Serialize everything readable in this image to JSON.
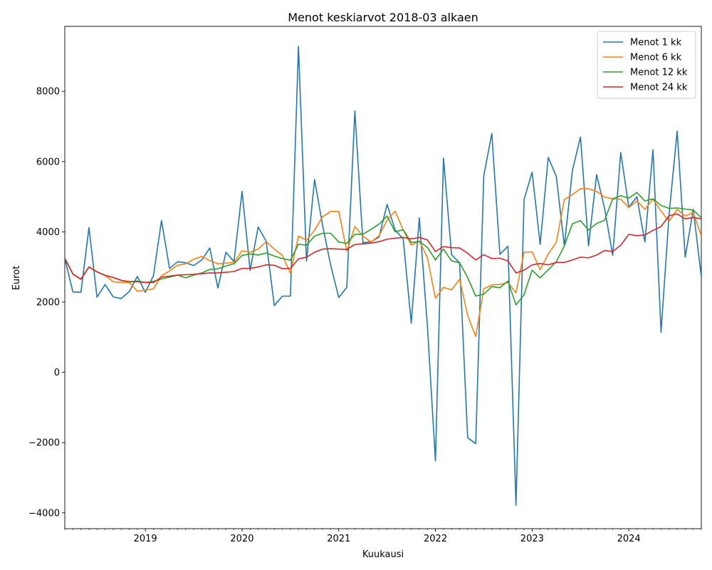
{
  "chart_data": {
    "type": "line",
    "title": "Menot keskiarvot 2018-03 alkaen",
    "xlabel": "Kuukausi",
    "ylabel": "Eurot",
    "x_start": "2018-03",
    "x_end": "2024-10",
    "xlim": [
      "2018-03",
      "2024-10"
    ],
    "ylim": [
      -4450,
      9850
    ],
    "yticks": [
      -4000,
      -2000,
      0,
      2000,
      4000,
      6000,
      8000
    ],
    "xticks": [
      {
        "label": "2019",
        "date": "2019-01"
      },
      {
        "label": "2020",
        "date": "2020-01"
      },
      {
        "label": "2021",
        "date": "2021-01"
      },
      {
        "label": "2022",
        "date": "2022-01"
      },
      {
        "label": "2023",
        "date": "2023-01"
      },
      {
        "label": "2024",
        "date": "2024-01"
      }
    ],
    "grid": false,
    "legend_position": "top-right",
    "series": [
      {
        "name": "Menot 1 kk",
        "color": "#1f77b4",
        "values": [
          3250,
          2290,
          2280,
          4120,
          2140,
          2500,
          2150,
          2100,
          2300,
          2730,
          2280,
          2750,
          4320,
          2960,
          3150,
          3120,
          3040,
          3200,
          3540,
          2400,
          3420,
          3150,
          5150,
          2900,
          4140,
          3730,
          1900,
          2170,
          2170,
          9280,
          3170,
          5490,
          4180,
          3050,
          2130,
          2420,
          7440,
          3690,
          3720,
          3850,
          4780,
          4050,
          3800,
          1400,
          4400,
          1330,
          -2520,
          6100,
          3350,
          3120,
          -1860,
          -2030,
          5600,
          6800,
          3360,
          3590,
          -3780,
          4920,
          5700,
          3640,
          6120,
          5580,
          3600,
          5750,
          6700,
          3600,
          5630,
          4660,
          3330,
          6260,
          4700,
          5000,
          3710,
          6340,
          1140,
          4500,
          6870,
          3280,
          4640,
          2720
        ]
      },
      {
        "name": "Menot 6 kk",
        "color": "#ff7f0e",
        "values": [
          3250,
          2800,
          2650,
          3000,
          2860,
          2760,
          2580,
          2560,
          2560,
          2310,
          2340,
          2380,
          2750,
          2890,
          3050,
          3090,
          3220,
          3300,
          3180,
          3090,
          3110,
          3130,
          3460,
          3420,
          3510,
          3720,
          3510,
          3330,
          2820,
          3880,
          3760,
          4050,
          4430,
          4580,
          4580,
          3450,
          4150,
          3880,
          3710,
          3890,
          4330,
          4590,
          4050,
          3620,
          3740,
          3270,
          2110,
          2420,
          2350,
          2650,
          1620,
          1020,
          2380,
          2490,
          2500,
          2560,
          2260,
          3420,
          3430,
          2920,
          3370,
          3700,
          4920,
          5060,
          5230,
          5230,
          5150,
          4990,
          4940,
          4930,
          4690,
          4880,
          4640,
          4930,
          4590,
          4300,
          4640,
          4450,
          4550,
          3880
        ]
      },
      {
        "name": "Menot 12 kk",
        "color": "#2ca02c",
        "values": [
          3250,
          2800,
          2650,
          3000,
          2860,
          2760,
          2700,
          2620,
          2580,
          2600,
          2560,
          2590,
          2660,
          2710,
          2770,
          2690,
          2770,
          2830,
          2930,
          2950,
          3030,
          3090,
          3330,
          3370,
          3340,
          3400,
          3310,
          3240,
          3190,
          3650,
          3620,
          3880,
          3960,
          3960,
          3710,
          3670,
          3930,
          3930,
          4070,
          4220,
          4450,
          4000,
          4060,
          3700,
          3720,
          3560,
          3200,
          3510,
          3170,
          3120,
          2700,
          2170,
          2230,
          2440,
          2410,
          2600,
          1920,
          2210,
          2910,
          2690,
          2920,
          3150,
          3600,
          4230,
          4320,
          4050,
          4240,
          4330,
          4940,
          5030,
          4960,
          5120,
          4880,
          4940,
          4750,
          4670,
          4680,
          4650,
          4620,
          4400
        ]
      },
      {
        "name": "Menot 24 kk",
        "color": "#d62728",
        "values": [
          3250,
          2800,
          2650,
          3000,
          2860,
          2760,
          2700,
          2620,
          2580,
          2580,
          2560,
          2560,
          2710,
          2740,
          2770,
          2780,
          2790,
          2810,
          2830,
          2830,
          2850,
          2870,
          2960,
          2960,
          3000,
          3060,
          3050,
          2950,
          2960,
          3230,
          3280,
          3420,
          3510,
          3520,
          3510,
          3500,
          3640,
          3660,
          3680,
          3720,
          3790,
          3820,
          3840,
          3800,
          3840,
          3770,
          3440,
          3580,
          3550,
          3540,
          3390,
          3200,
          3350,
          3240,
          3250,
          3170,
          2830,
          2910,
          3060,
          3100,
          3060,
          3130,
          3130,
          3200,
          3280,
          3260,
          3340,
          3470,
          3440,
          3620,
          3930,
          3890,
          3910,
          4040,
          4150,
          4460,
          4510,
          4370,
          4410,
          4370
        ]
      }
    ]
  }
}
